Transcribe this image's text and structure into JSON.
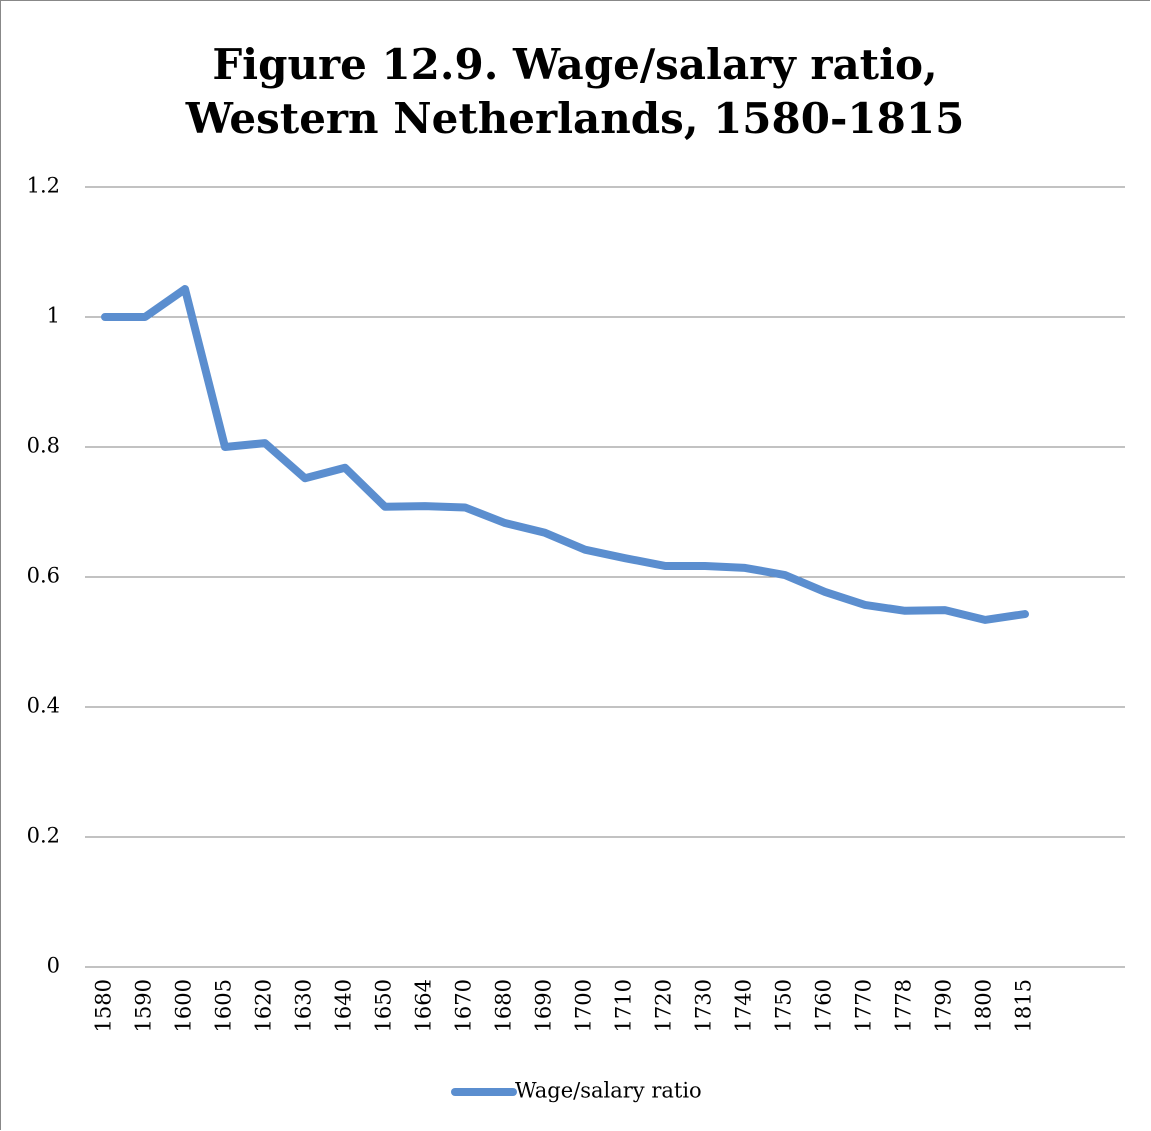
{
  "chart_data": {
    "type": "line",
    "title": "Figure 12.9. Wage/salary ratio, Western Netherlands, 1580-1815",
    "categories": [
      "1580",
      "1590",
      "1600",
      "1605",
      "1620",
      "1630",
      "1640",
      "1650",
      "1664",
      "1670",
      "1680",
      "1690",
      "1700",
      "1710",
      "1720",
      "1730",
      "1740",
      "1750",
      "1760",
      "1770",
      "1778",
      "1790",
      "1800",
      "1815",
      null,
      null
    ],
    "series": [
      {
        "name": "Wage/salary ratio",
        "color": "#5b8ecf",
        "values": [
          1.0,
          1.0,
          1.043,
          0.8,
          0.806,
          0.752,
          0.768,
          0.708,
          0.709,
          0.707,
          0.683,
          0.668,
          0.642,
          0.629,
          0.617,
          0.617,
          0.614,
          0.603,
          0.577,
          0.557,
          0.548,
          0.549,
          0.534,
          0.543,
          null,
          null
        ]
      }
    ],
    "ylim": [
      0,
      1.2
    ],
    "yticks": [
      0,
      0.2,
      0.4,
      0.6,
      0.8,
      1,
      1.2
    ],
    "grid": true,
    "legend": "bottom"
  }
}
